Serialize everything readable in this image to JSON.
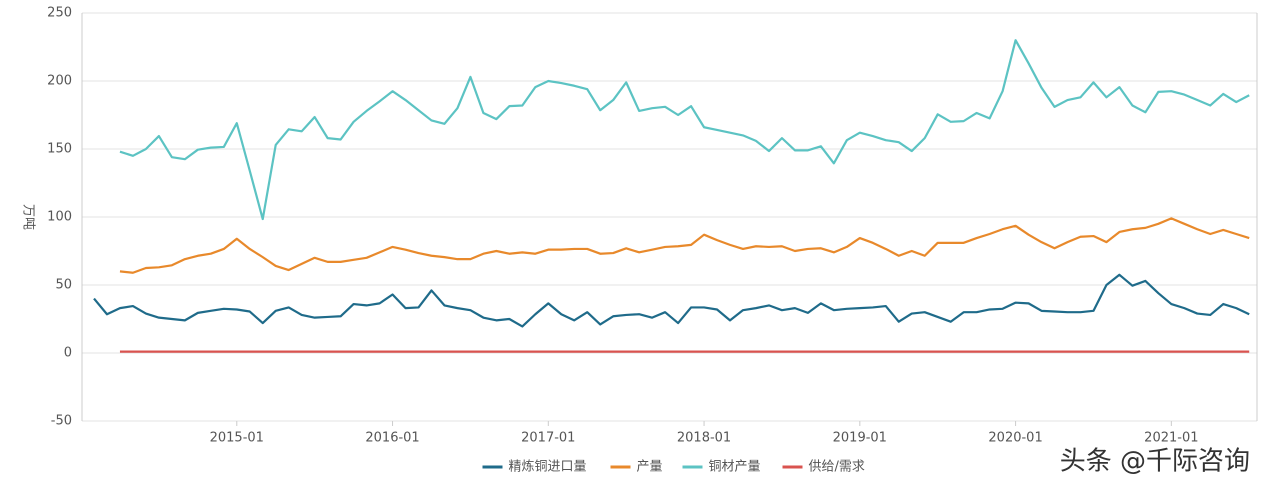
{
  "chart_data": {
    "type": "line",
    "y_label": "万吨",
    "watermark": "头条 @千际咨询",
    "x": [
      "2014-02",
      "2014-03",
      "2014-04",
      "2014-05",
      "2014-06",
      "2014-07",
      "2014-08",
      "2014-09",
      "2014-10",
      "2014-11",
      "2014-12",
      "2015-01",
      "2015-02",
      "2015-03",
      "2015-04",
      "2015-05",
      "2015-06",
      "2015-07",
      "2015-08",
      "2015-09",
      "2015-10",
      "2015-11",
      "2015-12",
      "2016-01",
      "2016-02",
      "2016-03",
      "2016-04",
      "2016-05",
      "2016-06",
      "2016-07",
      "2016-08",
      "2016-09",
      "2016-10",
      "2016-11",
      "2016-12",
      "2017-01",
      "2017-02",
      "2017-03",
      "2017-04",
      "2017-05",
      "2017-06",
      "2017-07",
      "2017-08",
      "2017-09",
      "2017-10",
      "2017-11",
      "2017-12",
      "2018-01",
      "2018-02",
      "2018-03",
      "2018-04",
      "2018-05",
      "2018-06",
      "2018-07",
      "2018-08",
      "2018-09",
      "2018-10",
      "2018-11",
      "2018-12",
      "2019-01",
      "2019-02",
      "2019-03",
      "2019-04",
      "2019-05",
      "2019-06",
      "2019-07",
      "2019-08",
      "2019-09",
      "2019-10",
      "2019-11",
      "2019-12",
      "2020-01",
      "2020-02",
      "2020-03",
      "2020-04",
      "2020-05",
      "2020-06",
      "2020-07",
      "2020-08",
      "2020-09",
      "2020-10",
      "2020-11",
      "2020-12",
      "2021-01",
      "2021-02",
      "2021-03",
      "2021-04",
      "2021-05",
      "2021-06",
      "2021-07"
    ],
    "xticks": [
      "2015-01",
      "2016-01",
      "2017-01",
      "2018-01",
      "2019-01",
      "2020-01",
      "2021-01"
    ],
    "ylim": [
      -50,
      250
    ],
    "yticks": [
      -50,
      0,
      50,
      100,
      150,
      200,
      250
    ],
    "grid": true,
    "series": [
      {
        "name": "精炼铜进口量",
        "color": "#1f6b8a",
        "values": [
          40,
          28.5,
          33,
          34.5,
          29,
          26,
          25,
          24,
          29.5,
          31,
          32.5,
          32,
          30.5,
          22,
          31,
          33.5,
          28,
          26,
          26.5,
          27,
          36,
          35,
          36.5,
          43,
          33,
          33.5,
          46,
          35,
          33,
          31.5,
          26,
          24,
          25,
          19.5,
          28.5,
          36.5,
          28.5,
          24,
          30,
          21,
          27,
          28,
          28.5,
          26,
          30,
          22,
          33.5,
          33.5,
          32,
          24,
          31.5,
          33,
          35,
          31.5,
          33,
          29.5,
          36.5,
          31.5,
          32.5,
          33,
          33.5,
          34.5,
          23,
          29,
          30,
          26.5,
          23,
          30,
          30,
          32,
          32.5,
          37,
          36.5,
          31,
          30.5,
          30,
          30,
          31,
          50,
          57.5,
          49.5,
          53,
          44,
          36,
          33,
          29,
          28,
          36,
          33,
          28.5
        ]
      },
      {
        "name": "产量",
        "color": "#e8892b",
        "values": [
          null,
          null,
          60,
          59,
          62.5,
          63,
          64.5,
          69,
          71.5,
          73,
          76.5,
          84,
          76.5,
          70.5,
          64,
          61,
          65.5,
          70,
          67,
          67,
          68.5,
          70,
          74,
          78,
          76,
          73.5,
          71.5,
          70.5,
          69,
          69,
          73,
          75,
          73,
          74,
          73,
          76,
          76,
          76.5,
          76.5,
          73,
          73.5,
          77,
          74,
          76,
          78,
          78.5,
          79.5,
          87,
          83,
          79.5,
          76.5,
          78.5,
          78,
          78.5,
          75,
          76.5,
          77,
          74,
          78,
          84.5,
          81,
          76.5,
          71.5,
          75,
          71.5,
          81,
          81,
          81,
          84.5,
          87.5,
          91,
          93.5,
          87,
          81.5,
          77,
          81.5,
          85.5,
          86,
          81.5,
          89,
          91,
          92,
          95,
          99,
          95,
          91,
          87.5,
          90.5,
          87.5,
          84.5
        ]
      },
      {
        "name": "铜材产量",
        "color": "#5cc3c3",
        "values": [
          null,
          null,
          148,
          145,
          150,
          159.5,
          144,
          142.5,
          149.5,
          151,
          151.5,
          169,
          134,
          98.5,
          153,
          164.5,
          163,
          173.5,
          158,
          157,
          170,
          178,
          185,
          192.5,
          186,
          178.5,
          171,
          168.5,
          180,
          203,
          176.5,
          172,
          181.5,
          182,
          195.5,
          200,
          198.5,
          196.5,
          194,
          178.5,
          186,
          199,
          178,
          180,
          181,
          175,
          181.5,
          166,
          164,
          162,
          160,
          156,
          148.5,
          158,
          149,
          149,
          152,
          139.5,
          156.5,
          162,
          159.5,
          156.5,
          155,
          148.5,
          158,
          175.5,
          170,
          170.5,
          176.5,
          172.5,
          192.5,
          230,
          213,
          195,
          181,
          186,
          188,
          199,
          188,
          195.5,
          182,
          177,
          192,
          192.5,
          190,
          186,
          182,
          190.5,
          184.5,
          189.5
        ]
      },
      {
        "name": "供给/需求",
        "color": "#d9534f",
        "values": [
          null,
          null,
          1,
          1,
          1,
          1,
          1,
          1,
          1,
          1,
          1,
          1,
          1,
          1,
          1,
          1,
          1,
          1,
          1,
          1,
          1,
          1,
          1,
          1,
          1,
          1,
          1,
          1,
          1,
          1,
          1,
          1,
          1,
          1,
          1,
          1,
          1,
          1,
          1,
          1,
          1,
          1,
          1,
          1,
          1,
          1,
          1,
          1,
          1,
          1,
          1,
          1,
          1,
          1,
          1,
          1,
          1,
          1,
          1,
          1,
          1,
          1,
          1,
          1,
          1,
          1,
          1,
          1,
          1,
          1,
          1,
          1,
          1,
          1,
          1,
          1,
          1,
          1,
          1,
          1,
          1,
          1,
          1,
          1,
          1,
          1,
          1,
          1,
          1,
          1
        ]
      }
    ]
  }
}
